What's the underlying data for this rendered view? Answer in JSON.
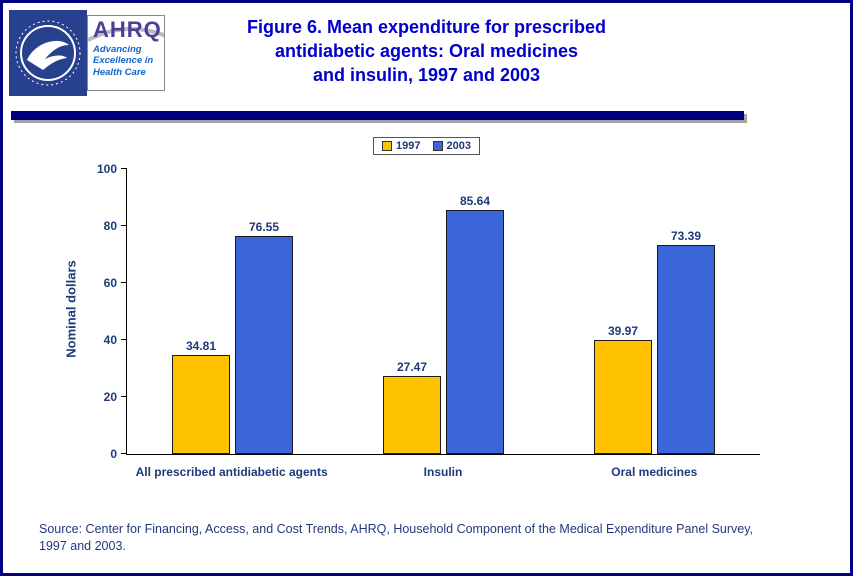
{
  "page": {
    "title_lines": [
      "Figure 6. Mean expenditure for prescribed",
      "antidiabetic agents: Oral medicines",
      "and insulin, 1997 and 2003"
    ],
    "source_lines": [
      "Source: Center for Financing, Access, and Cost Trends, AHRQ, Household Component of the Medical Expenditure Panel Survey,",
      "1997 and 2003."
    ]
  },
  "logos": {
    "hhs_icon": "hhs-eagle-emblem",
    "ahrq_name": "AHRQ",
    "ahrq_tagline_lines": [
      "Advancing",
      "Excellence in",
      "Health Care"
    ]
  },
  "colors": {
    "border_navy": "#000080",
    "title_blue": "#0000CC",
    "axis_navy": "#1E3A7A",
    "series_1997": "#FFC200",
    "series_2003": "#3A66D9"
  },
  "chart_data": {
    "type": "bar",
    "title": "Figure 6. Mean expenditure for prescribed antidiabetic agents: Oral medicines and insulin, 1997 and 2003",
    "categories": [
      "All prescribed antidiabetic agents",
      "Insulin",
      "Oral medicines"
    ],
    "series": [
      {
        "name": "1997",
        "color": "#FFC200",
        "values": [
          34.81,
          27.47,
          39.97
        ]
      },
      {
        "name": "2003",
        "color": "#3A66D9",
        "values": [
          76.55,
          85.64,
          73.39
        ]
      }
    ],
    "ylabel": "Nominal dollars",
    "xlabel": "",
    "ylim": [
      0,
      100
    ],
    "yticks": [
      0,
      20,
      40,
      60,
      80,
      100
    ],
    "grid": false,
    "legend_position": "top",
    "value_labels_shown": true
  }
}
